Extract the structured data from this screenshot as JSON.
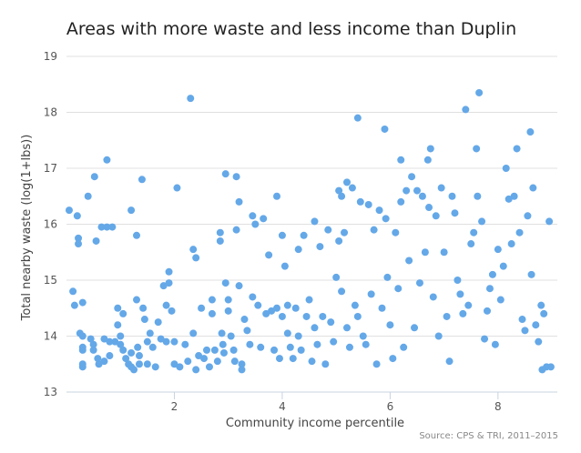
{
  "chart_data": {
    "type": "scatter",
    "title": "Areas with more waste and less income than Duplin",
    "xlabel": "Community income percentile",
    "ylabel": "Total nearby waste (log(1+lbs))",
    "source": "Source: CPS & TRI, 2011–2015",
    "xlim": [
      0,
      9.1
    ],
    "ylim": [
      13,
      19
    ],
    "xticks": [
      2,
      4,
      6,
      8
    ],
    "yticks": [
      13,
      14,
      15,
      16,
      17,
      18,
      19
    ],
    "grid": "horizontal",
    "legend": "none",
    "color": "#64a8e8",
    "points": [
      [
        0.05,
        16.25
      ],
      [
        0.12,
        14.8
      ],
      [
        0.15,
        14.55
      ],
      [
        0.2,
        16.15
      ],
      [
        0.22,
        15.75
      ],
      [
        0.22,
        15.65
      ],
      [
        0.25,
        14.05
      ],
      [
        0.3,
        14.6
      ],
      [
        0.3,
        14.0
      ],
      [
        0.3,
        13.8
      ],
      [
        0.3,
        13.75
      ],
      [
        0.3,
        13.5
      ],
      [
        0.3,
        13.45
      ],
      [
        0.4,
        16.5
      ],
      [
        0.45,
        13.95
      ],
      [
        0.5,
        13.85
      ],
      [
        0.5,
        13.75
      ],
      [
        0.52,
        16.85
      ],
      [
        0.55,
        15.7
      ],
      [
        0.58,
        13.6
      ],
      [
        0.6,
        13.5
      ],
      [
        0.65,
        15.95
      ],
      [
        0.7,
        13.95
      ],
      [
        0.7,
        13.55
      ],
      [
        0.75,
        17.15
      ],
      [
        0.75,
        15.95
      ],
      [
        0.8,
        13.9
      ],
      [
        0.8,
        13.65
      ],
      [
        0.85,
        15.95
      ],
      [
        0.9,
        13.9
      ],
      [
        0.95,
        14.5
      ],
      [
        0.95,
        14.2
      ],
      [
        1.0,
        14.0
      ],
      [
        1.0,
        13.85
      ],
      [
        1.05,
        14.4
      ],
      [
        1.05,
        13.75
      ],
      [
        1.1,
        13.6
      ],
      [
        1.15,
        13.5
      ],
      [
        1.2,
        16.25
      ],
      [
        1.2,
        13.7
      ],
      [
        1.2,
        13.45
      ],
      [
        1.25,
        13.4
      ],
      [
        1.3,
        15.8
      ],
      [
        1.3,
        14.65
      ],
      [
        1.32,
        13.8
      ],
      [
        1.35,
        13.65
      ],
      [
        1.35,
        13.5
      ],
      [
        1.4,
        16.8
      ],
      [
        1.42,
        14.5
      ],
      [
        1.45,
        14.3
      ],
      [
        1.5,
        13.9
      ],
      [
        1.5,
        13.5
      ],
      [
        1.55,
        14.05
      ],
      [
        1.6,
        13.8
      ],
      [
        1.65,
        13.45
      ],
      [
        1.7,
        14.25
      ],
      [
        1.75,
        13.95
      ],
      [
        1.8,
        14.9
      ],
      [
        1.85,
        14.55
      ],
      [
        1.85,
        13.9
      ],
      [
        1.9,
        15.15
      ],
      [
        1.9,
        14.95
      ],
      [
        1.95,
        14.45
      ],
      [
        2.0,
        13.9
      ],
      [
        2.0,
        13.5
      ],
      [
        2.05,
        16.65
      ],
      [
        2.1,
        13.45
      ],
      [
        2.2,
        13.85
      ],
      [
        2.25,
        13.55
      ],
      [
        2.3,
        18.25
      ],
      [
        2.35,
        15.55
      ],
      [
        2.35,
        14.05
      ],
      [
        2.4,
        15.4
      ],
      [
        2.4,
        13.4
      ],
      [
        2.45,
        13.65
      ],
      [
        2.5,
        14.5
      ],
      [
        2.55,
        13.6
      ],
      [
        2.6,
        13.75
      ],
      [
        2.65,
        13.45
      ],
      [
        2.7,
        14.65
      ],
      [
        2.7,
        14.4
      ],
      [
        2.75,
        13.75
      ],
      [
        2.8,
        13.55
      ],
      [
        2.85,
        15.85
      ],
      [
        2.85,
        15.7
      ],
      [
        2.88,
        14.05
      ],
      [
        2.9,
        13.85
      ],
      [
        2.92,
        13.7
      ],
      [
        2.95,
        16.9
      ],
      [
        2.95,
        14.95
      ],
      [
        3.0,
        14.65
      ],
      [
        3.0,
        14.45
      ],
      [
        3.05,
        14.0
      ],
      [
        3.1,
        13.75
      ],
      [
        3.12,
        13.55
      ],
      [
        3.15,
        16.85
      ],
      [
        3.15,
        15.9
      ],
      [
        3.2,
        16.4
      ],
      [
        3.2,
        14.9
      ],
      [
        3.25,
        13.5
      ],
      [
        3.25,
        13.4
      ],
      [
        3.3,
        14.3
      ],
      [
        3.35,
        14.1
      ],
      [
        3.4,
        13.85
      ],
      [
        3.45,
        16.15
      ],
      [
        3.45,
        14.7
      ],
      [
        3.5,
        16.0
      ],
      [
        3.55,
        14.55
      ],
      [
        3.6,
        13.8
      ],
      [
        3.65,
        16.1
      ],
      [
        3.7,
        14.4
      ],
      [
        3.75,
        15.45
      ],
      [
        3.8,
        14.45
      ],
      [
        3.85,
        13.75
      ],
      [
        3.9,
        16.5
      ],
      [
        3.9,
        14.5
      ],
      [
        3.95,
        13.6
      ],
      [
        4.0,
        15.8
      ],
      [
        4.0,
        14.35
      ],
      [
        4.05,
        15.25
      ],
      [
        4.1,
        14.55
      ],
      [
        4.1,
        14.05
      ],
      [
        4.15,
        13.8
      ],
      [
        4.2,
        13.6
      ],
      [
        4.25,
        14.5
      ],
      [
        4.3,
        15.55
      ],
      [
        4.3,
        14.0
      ],
      [
        4.35,
        13.75
      ],
      [
        4.4,
        15.8
      ],
      [
        4.45,
        14.35
      ],
      [
        4.5,
        14.65
      ],
      [
        4.55,
        13.55
      ],
      [
        4.6,
        16.05
      ],
      [
        4.6,
        14.15
      ],
      [
        4.65,
        13.85
      ],
      [
        4.7,
        15.6
      ],
      [
        4.75,
        14.35
      ],
      [
        4.8,
        13.5
      ],
      [
        4.85,
        15.9
      ],
      [
        4.9,
        14.25
      ],
      [
        4.95,
        13.9
      ],
      [
        5.0,
        15.05
      ],
      [
        5.05,
        16.6
      ],
      [
        5.05,
        15.7
      ],
      [
        5.1,
        16.5
      ],
      [
        5.1,
        14.8
      ],
      [
        5.15,
        15.85
      ],
      [
        5.2,
        16.75
      ],
      [
        5.2,
        14.15
      ],
      [
        5.25,
        13.8
      ],
      [
        5.3,
        16.65
      ],
      [
        5.35,
        14.55
      ],
      [
        5.4,
        17.9
      ],
      [
        5.4,
        14.35
      ],
      [
        5.45,
        16.4
      ],
      [
        5.5,
        14.0
      ],
      [
        5.55,
        13.85
      ],
      [
        5.6,
        16.35
      ],
      [
        5.65,
        14.75
      ],
      [
        5.7,
        15.9
      ],
      [
        5.75,
        13.5
      ],
      [
        5.8,
        16.25
      ],
      [
        5.85,
        14.5
      ],
      [
        5.9,
        17.7
      ],
      [
        5.92,
        16.1
      ],
      [
        5.95,
        15.05
      ],
      [
        6.0,
        14.2
      ],
      [
        6.05,
        13.6
      ],
      [
        6.1,
        15.85
      ],
      [
        6.15,
        14.85
      ],
      [
        6.2,
        17.15
      ],
      [
        6.2,
        16.4
      ],
      [
        6.25,
        13.8
      ],
      [
        6.3,
        16.6
      ],
      [
        6.35,
        15.35
      ],
      [
        6.4,
        16.85
      ],
      [
        6.45,
        14.15
      ],
      [
        6.5,
        16.6
      ],
      [
        6.55,
        14.95
      ],
      [
        6.6,
        16.5
      ],
      [
        6.65,
        15.5
      ],
      [
        6.7,
        17.15
      ],
      [
        6.72,
        16.3
      ],
      [
        6.75,
        17.35
      ],
      [
        6.8,
        14.7
      ],
      [
        6.85,
        16.15
      ],
      [
        6.9,
        14.0
      ],
      [
        6.95,
        16.65
      ],
      [
        7.0,
        15.5
      ],
      [
        7.05,
        14.35
      ],
      [
        7.1,
        13.55
      ],
      [
        7.15,
        16.5
      ],
      [
        7.2,
        16.2
      ],
      [
        7.25,
        15.0
      ],
      [
        7.3,
        14.75
      ],
      [
        7.35,
        14.4
      ],
      [
        7.4,
        18.05
      ],
      [
        7.45,
        14.55
      ],
      [
        7.5,
        15.65
      ],
      [
        7.55,
        15.85
      ],
      [
        7.6,
        17.35
      ],
      [
        7.62,
        16.5
      ],
      [
        7.65,
        18.35
      ],
      [
        7.7,
        16.05
      ],
      [
        7.75,
        13.95
      ],
      [
        7.8,
        14.45
      ],
      [
        7.85,
        14.85
      ],
      [
        7.9,
        15.1
      ],
      [
        7.95,
        13.85
      ],
      [
        8.0,
        15.55
      ],
      [
        8.05,
        14.65
      ],
      [
        8.1,
        15.25
      ],
      [
        8.15,
        17.0
      ],
      [
        8.2,
        16.45
      ],
      [
        8.25,
        15.65
      ],
      [
        8.3,
        16.5
      ],
      [
        8.35,
        17.35
      ],
      [
        8.4,
        15.85
      ],
      [
        8.45,
        14.3
      ],
      [
        8.5,
        14.1
      ],
      [
        8.55,
        16.15
      ],
      [
        8.6,
        17.65
      ],
      [
        8.62,
        15.1
      ],
      [
        8.65,
        16.65
      ],
      [
        8.7,
        14.2
      ],
      [
        8.75,
        13.9
      ],
      [
        8.8,
        14.55
      ],
      [
        8.82,
        13.4
      ],
      [
        8.85,
        14.4
      ],
      [
        8.9,
        13.45
      ],
      [
        8.95,
        16.05
      ],
      [
        8.98,
        13.45
      ]
    ]
  }
}
